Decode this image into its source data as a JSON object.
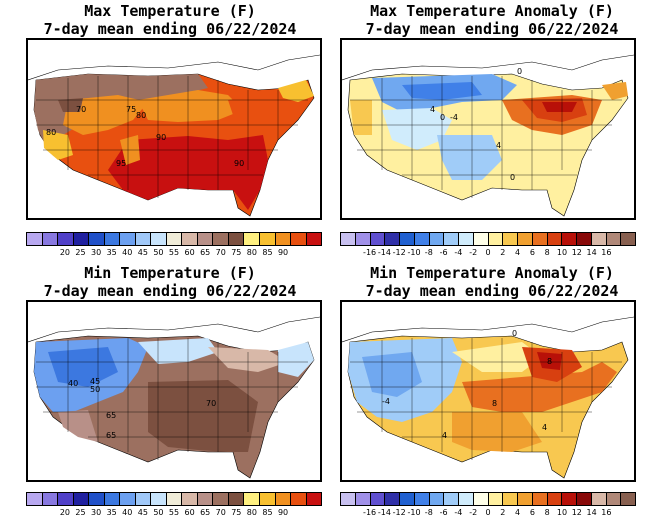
{
  "panels": [
    {
      "id": "max-temp",
      "title_line1": "Max Temperature (F)",
      "title_line2": "7-day mean ending 06/22/2024",
      "colorbar_colors": [
        "#b8a8f0",
        "#8878e0",
        "#5040c8",
        "#2020a0",
        "#2050c8",
        "#3c78e0",
        "#6ca0f0",
        "#a0c8f8",
        "#c8e4fc",
        "#f0ecd8",
        "#d8b8a8",
        "#b89088",
        "#9c7060",
        "#7c5040",
        "#fff080",
        "#f8c030",
        "#f09020",
        "#e85010",
        "#c81010"
      ],
      "colorbar_labels": [
        "20",
        "25",
        "30",
        "35",
        "40",
        "45",
        "50",
        "55",
        "60",
        "65",
        "70",
        "75",
        "80",
        "85",
        "90"
      ],
      "map_labels": [
        "70",
        "75",
        "80",
        "80",
        "90",
        "95",
        "90"
      ]
    },
    {
      "id": "max-anom",
      "title_line1": "Max Temperature Anomaly (F)",
      "title_line2": "7-day mean ending 06/22/2024",
      "colorbar_colors": [
        "#c8c0f0",
        "#a090e8",
        "#6050d0",
        "#3030a8",
        "#2060d0",
        "#4080e8",
        "#70a8f0",
        "#a0ccf8",
        "#d0ecfc",
        "#ffffe8",
        "#fff0a0",
        "#f8c850",
        "#f0a030",
        "#e87020",
        "#d84010",
        "#b81008",
        "#880808",
        "#d8b8a8",
        "#b08878",
        "#886050"
      ],
      "colorbar_labels": [
        "-16",
        "-14",
        "-12",
        "-10",
        "-8",
        "-6",
        "-4",
        "-2",
        "0",
        "2",
        "4",
        "6",
        "8",
        "10",
        "12",
        "14",
        "16"
      ],
      "map_labels": [
        "0",
        "4",
        "0",
        "-4",
        "4",
        "0"
      ]
    },
    {
      "id": "min-temp",
      "title_line1": "Min Temperature (F)",
      "title_line2": "7-day mean ending 06/22/2024",
      "colorbar_colors": [
        "#b8a8f0",
        "#8878e0",
        "#5040c8",
        "#2020a0",
        "#2050c8",
        "#3c78e0",
        "#6ca0f0",
        "#a0c8f8",
        "#c8e4fc",
        "#f0ecd8",
        "#d8b8a8",
        "#b89088",
        "#9c7060",
        "#7c5040",
        "#fff080",
        "#f8c030",
        "#f09020",
        "#e85010",
        "#c81010"
      ],
      "colorbar_labels": [
        "20",
        "25",
        "30",
        "35",
        "40",
        "45",
        "50",
        "55",
        "60",
        "65",
        "70",
        "75",
        "80",
        "85",
        "90"
      ],
      "map_labels": [
        "40",
        "45",
        "50",
        "65",
        "65",
        "70"
      ]
    },
    {
      "id": "min-anom",
      "title_line1": "Min Temperature Anomaly (F)",
      "title_line2": "7-day mean ending 06/22/2024",
      "colorbar_colors": [
        "#c8c0f0",
        "#a090e8",
        "#6050d0",
        "#3030a8",
        "#2060d0",
        "#4080e8",
        "#70a8f0",
        "#a0ccf8",
        "#d0ecfc",
        "#ffffe8",
        "#fff0a0",
        "#f8c850",
        "#f0a030",
        "#e87020",
        "#d84010",
        "#b81008",
        "#880808",
        "#d8b8a8",
        "#b08878",
        "#886050"
      ],
      "colorbar_labels": [
        "-16",
        "-14",
        "-12",
        "-10",
        "-8",
        "-6",
        "-4",
        "-2",
        "0",
        "2",
        "4",
        "6",
        "8",
        "10",
        "12",
        "14",
        "16"
      ],
      "map_labels": [
        "-4",
        "0",
        "4",
        "4",
        "8",
        "8"
      ]
    }
  ]
}
